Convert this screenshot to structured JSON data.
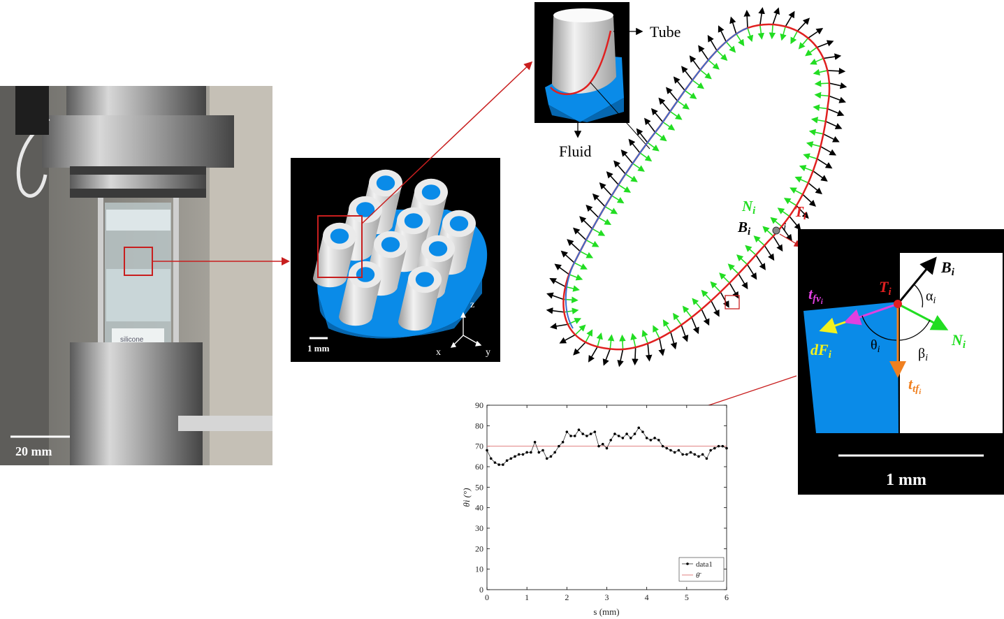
{
  "photo": {
    "scale_label": "20 mm",
    "sample_label": "silicone"
  },
  "tube_array": {
    "scale_label": "1 mm",
    "axes": {
      "z": "z",
      "x": "x",
      "y": "y"
    }
  },
  "inset_3d": {
    "tube_label": "Tube",
    "fluid_label": "Fluid"
  },
  "contour": {
    "point_label": "i",
    "N_label": "N",
    "T_label": "T",
    "B_label": "B",
    "subscript": "i"
  },
  "zoom": {
    "B_label": "B",
    "T_label": "T",
    "N_label": "N",
    "alpha_label": "α",
    "beta_label": "β",
    "theta_label": "θ",
    "dF_label": "dF",
    "tfv_label": "t",
    "tfv_sub": "fv",
    "ttf_label": "t",
    "ttf_sub": "tf",
    "subscript": "i",
    "scale_label": "1 mm"
  },
  "colors": {
    "fluid_blue": "#0a8be8",
    "tangent_red": "#e02020",
    "normal_green": "#22dd22",
    "binormal_black": "#000000",
    "tfv_magenta": "#e040e0",
    "dF_yellow": "#f2f21e",
    "ttf_orange": "#f08020",
    "mean_line": "#e08080"
  },
  "chart_data": {
    "type": "line",
    "xlabel": "s (mm)",
    "ylabel": "θi (°)",
    "xlim": [
      0,
      6
    ],
    "ylim": [
      0,
      90
    ],
    "xticks": [
      "0",
      "1",
      "2",
      "3",
      "4",
      "5",
      "6"
    ],
    "yticks": [
      "0",
      "10",
      "20",
      "30",
      "40",
      "50",
      "60",
      "70",
      "80",
      "90"
    ],
    "grid": false,
    "legend_position": "bottom-right",
    "series": [
      {
        "name": "data1",
        "x": [
          0,
          0.1,
          0.2,
          0.3,
          0.4,
          0.5,
          0.6,
          0.7,
          0.8,
          0.9,
          1.0,
          1.1,
          1.2,
          1.3,
          1.4,
          1.5,
          1.6,
          1.7,
          1.8,
          1.9,
          2.0,
          2.1,
          2.2,
          2.3,
          2.4,
          2.5,
          2.6,
          2.7,
          2.8,
          2.9,
          3.0,
          3.1,
          3.2,
          3.3,
          3.4,
          3.5,
          3.6,
          3.7,
          3.8,
          3.9,
          4.0,
          4.1,
          4.2,
          4.3,
          4.4,
          4.5,
          4.6,
          4.7,
          4.8,
          4.9,
          5.0,
          5.1,
          5.2,
          5.3,
          5.4,
          5.5,
          5.6,
          5.7,
          5.8,
          5.9,
          6.0
        ],
        "values": [
          68,
          64,
          62,
          61,
          61,
          63,
          64,
          65,
          66,
          66,
          67,
          67,
          72,
          67,
          68,
          64,
          65,
          67,
          70,
          72,
          77,
          75,
          75,
          78,
          76,
          75,
          76,
          77,
          70,
          71,
          69,
          73,
          76,
          75,
          74,
          76,
          74,
          76,
          79,
          77,
          74,
          73,
          74,
          73,
          70,
          69,
          68,
          67,
          68,
          66,
          66,
          67,
          66,
          65,
          66,
          64,
          68,
          69,
          70,
          70,
          69
        ]
      },
      {
        "name": "θ̄",
        "x": [
          0,
          6
        ],
        "values": [
          70,
          70
        ]
      }
    ]
  }
}
